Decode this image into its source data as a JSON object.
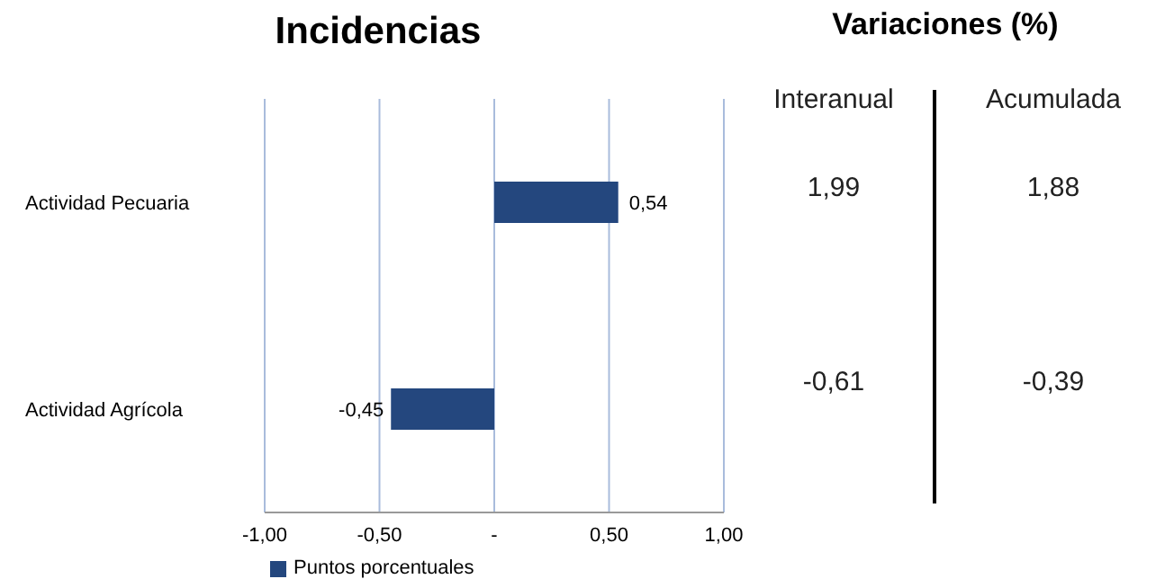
{
  "chart_data": [
    {
      "type": "bar",
      "orientation": "horizontal",
      "title": "Incidencias",
      "categories": [
        "Actividad Pecuaria",
        "Actividad Agrícola"
      ],
      "series": [
        {
          "name": "Puntos porcentuales",
          "color": "#24477e",
          "values": [
            0.54,
            -0.45
          ],
          "value_labels": [
            "0,54",
            "-0,45"
          ]
        }
      ],
      "xlim": [
        -1,
        1
      ],
      "xticks": [
        {
          "value": -1,
          "label": "-1,00"
        },
        {
          "value": -0.5,
          "label": "-0,50"
        },
        {
          "value": 0,
          "label": "-"
        },
        {
          "value": 0.5,
          "label": "0,50"
        },
        {
          "value": 1,
          "label": "1,00"
        }
      ],
      "grid": "x",
      "legend": "bottom left"
    },
    {
      "type": "other",
      "title": "Variaciones (%)",
      "categories": [
        "Interanual",
        "Acumulada"
      ],
      "annotations": [
        "1,99",
        "1,88",
        "-0,61",
        "-0,39"
      ]
    }
  ]
}
